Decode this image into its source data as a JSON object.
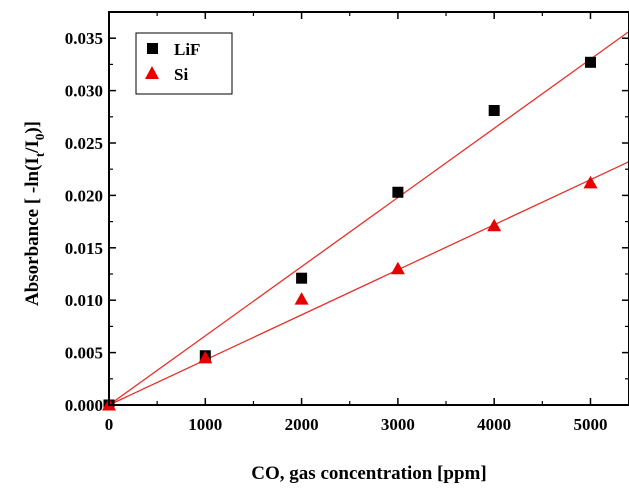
{
  "chart_data": {
    "type": "scatter",
    "xlabel": "CO, gas concentration [ppm]",
    "ylabel_parts": {
      "prefix": "Absorbance [ -ln(I",
      "sub1": "t",
      "mid": "/I",
      "sub2": "0",
      "suffix": ")]"
    },
    "xlim": [
      0,
      5400
    ],
    "ylim": [
      0,
      0.0375
    ],
    "x_ticks": [
      0,
      1000,
      2000,
      3000,
      4000,
      5000
    ],
    "x_tick_labels": [
      "0",
      "1000",
      "2000",
      "3000",
      "4000",
      "5000"
    ],
    "y_ticks": [
      0,
      0.005,
      0.01,
      0.015,
      0.02,
      0.025,
      0.03,
      0.035
    ],
    "y_tick_labels": [
      "0.000",
      "0.005",
      "0.010",
      "0.015",
      "0.020",
      "0.025",
      "0.030",
      "0.035"
    ],
    "legend_position": "top-left",
    "grid": false,
    "series": [
      {
        "name": "LiF",
        "marker": "square",
        "color": "#000000",
        "x": [
          0,
          1000,
          2000,
          3000,
          4000,
          5000
        ],
        "y": [
          0.0,
          0.0047,
          0.0121,
          0.0203,
          0.0281,
          0.0327
        ],
        "fit": {
          "slope": 6.6e-06,
          "intercept": 0.0,
          "color": "#e8302a"
        }
      },
      {
        "name": "Si",
        "marker": "triangle",
        "color": "#e60000",
        "x": [
          0,
          1000,
          2000,
          3000,
          4000,
          5000
        ],
        "y": [
          0.0,
          0.0045,
          0.0101,
          0.013,
          0.0171,
          0.0212
        ],
        "fit": {
          "slope": 4.3e-06,
          "intercept": 0.0,
          "color": "#e8302a"
        }
      }
    ]
  }
}
